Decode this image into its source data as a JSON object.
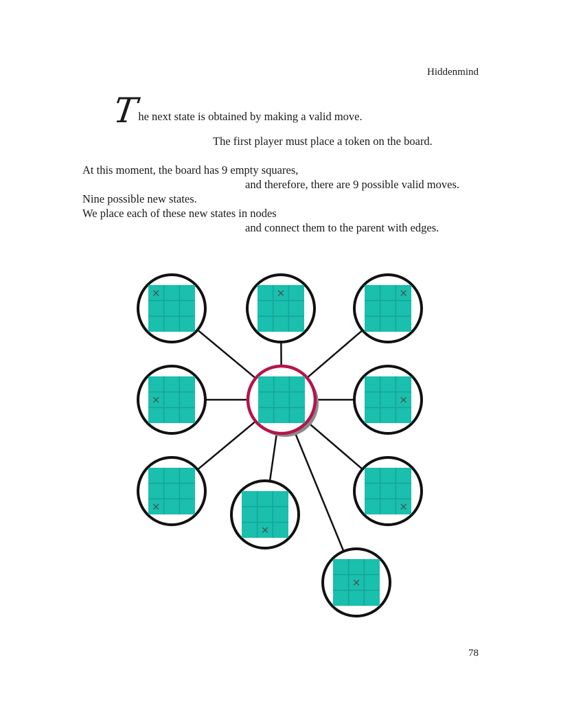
{
  "header": {
    "running_title": "Hiddenmind"
  },
  "intro": {
    "drop_cap": "T",
    "first_line_rest": "he next state is obtained by making a valid move.",
    "second_line": "The first player must place a token on the board."
  },
  "paragraph": {
    "lines": [
      "At this moment, the board has 9 empty squares,",
      "and therefore, there are 9 possible valid moves.",
      "Nine possible new states.",
      "We place each of these new states in nodes",
      "and connect them to the parent with edges."
    ]
  },
  "footer": {
    "page_number": "78"
  },
  "diagram": {
    "parent": {
      "board": [
        [
          0,
          0,
          0
        ],
        [
          0,
          0,
          0
        ],
        [
          0,
          0,
          0
        ]
      ]
    },
    "children": [
      {
        "move": [
          0,
          0
        ]
      },
      {
        "move": [
          0,
          1
        ]
      },
      {
        "move": [
          0,
          2
        ]
      },
      {
        "move": [
          1,
          0
        ]
      },
      {
        "move": [
          1,
          2
        ]
      },
      {
        "move": [
          2,
          0
        ]
      },
      {
        "move": [
          2,
          1
        ]
      },
      {
        "move": [
          2,
          2
        ]
      },
      {
        "move": [
          1,
          1
        ]
      }
    ],
    "token": "×",
    "colors": {
      "board": "#1abfae",
      "board_grid": "#14a596",
      "node_ring": "#111111",
      "parent_ring": "#b5144a",
      "token": "#4a4a4a",
      "shadow": "#8a8a8a"
    }
  }
}
